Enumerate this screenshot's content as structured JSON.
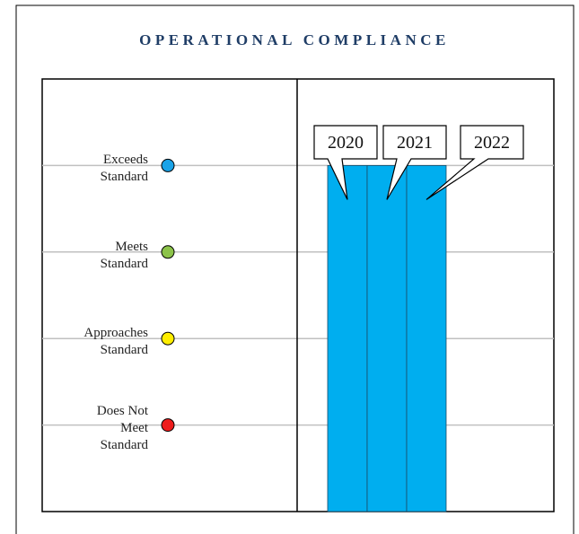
{
  "chart_data": {
    "type": "bar",
    "title": "OPERATIONAL COMPLIANCE",
    "categories": [
      "2020",
      "2021",
      "2022"
    ],
    "values": [
      4,
      4,
      4
    ],
    "color": "#00aeef",
    "ylim": [
      0,
      5
    ],
    "yticks": [
      {
        "value": 1,
        "label": "Does Not\nMeet\nStandard"
      },
      {
        "value": 2,
        "label": "Approaches\nStandard"
      },
      {
        "value": 3,
        "label": "Meets\nStandard"
      },
      {
        "value": 4,
        "label": "Exceeds\nStandard"
      }
    ],
    "ytick_colors": [
      "#ee1c1c",
      "#ffee00",
      "#8cc34a",
      "#1aa3e8"
    ],
    "grid": true
  }
}
